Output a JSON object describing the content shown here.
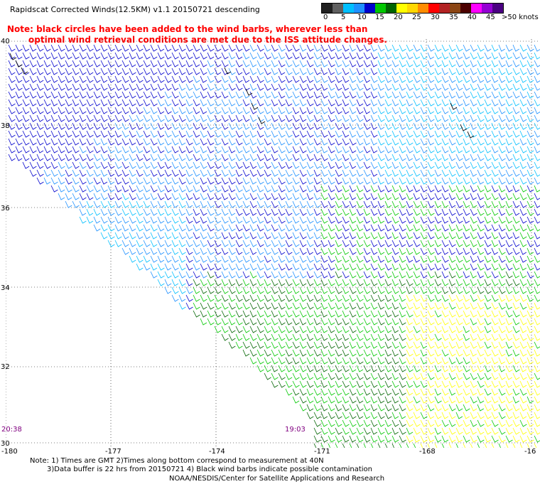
{
  "title": "Rapidscat Corrected Winds(12.5KM) v1.1 20150721 descending",
  "note_lines": [
    "Note: black circles have been added to the wind barbs, wherever less than",
    "optimal wind retrieval conditions are met due to the ISS attitude changes."
  ],
  "legend": {
    "labels": [
      "0",
      "5",
      "10",
      "15",
      "20",
      "25",
      "30",
      "35",
      "40",
      "45",
      ">50 knots"
    ],
    "colors": [
      "#202020",
      "#606060",
      "#00bfff",
      "#1e90ff",
      "#0000cd",
      "#00c800",
      "#006400",
      "#ffff00",
      "#ffd700",
      "#ff8c00",
      "#ff0000",
      "#b22222",
      "#8b4513",
      "#4b0000",
      "#ff00ff",
      "#9400d3",
      "#4b0082"
    ]
  },
  "lat_labels": [
    "40",
    "38",
    "36",
    "34",
    "32",
    "30"
  ],
  "lon_labels": [
    "-180",
    "-177",
    "-174",
    "-171",
    "-168",
    "-16"
  ],
  "time_labels": [
    "20:38",
    "19:03"
  ],
  "footer": {
    "line1": "Note: 1) Times are GMT 2)Times along bottom correspond to measurement at 40N",
    "line2": "3)Data buffer is 22 hrs from 20150721 4) Black wind barbs indicate possible contamination",
    "credit": "NOAA/NESDIS/Center for Satellite Applications and Research"
  }
}
